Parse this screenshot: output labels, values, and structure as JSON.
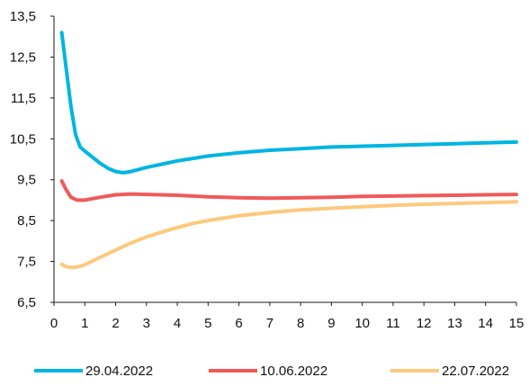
{
  "chart_data": {
    "type": "line",
    "title": "",
    "xlabel": "",
    "ylabel": "",
    "xlim": [
      0,
      15
    ],
    "ylim": [
      6.5,
      13.5
    ],
    "x_ticks": [
      "0",
      "1",
      "2",
      "3",
      "4",
      "5",
      "6",
      "7",
      "8",
      "9",
      "10",
      "11",
      "12",
      "13",
      "14",
      "15"
    ],
    "y_ticks": [
      "6,5",
      "7,5",
      "8,5",
      "9,5",
      "10,5",
      "11,5",
      "12,5",
      "13,5"
    ],
    "grid": false,
    "legend_position": "bottom",
    "series": [
      {
        "name": "29.04.2022",
        "color": "#00b5e2",
        "points": [
          [
            0.25,
            13.1
          ],
          [
            0.4,
            12.2
          ],
          [
            0.55,
            11.3
          ],
          [
            0.7,
            10.6
          ],
          [
            0.85,
            10.3
          ],
          [
            1.0,
            10.2
          ],
          [
            1.25,
            10.05
          ],
          [
            1.5,
            9.9
          ],
          [
            1.75,
            9.78
          ],
          [
            2.0,
            9.7
          ],
          [
            2.25,
            9.67
          ],
          [
            2.5,
            9.7
          ],
          [
            3.0,
            9.8
          ],
          [
            3.5,
            9.88
          ],
          [
            4.0,
            9.96
          ],
          [
            4.5,
            10.02
          ],
          [
            5.0,
            10.08
          ],
          [
            6.0,
            10.16
          ],
          [
            7.0,
            10.22
          ],
          [
            8.0,
            10.26
          ],
          [
            9.0,
            10.3
          ],
          [
            10.0,
            10.32
          ],
          [
            11.0,
            10.34
          ],
          [
            12.0,
            10.36
          ],
          [
            13.0,
            10.38
          ],
          [
            14.0,
            10.4
          ],
          [
            15.0,
            10.42
          ]
        ]
      },
      {
        "name": "10.06.2022",
        "color": "#ef5a5a",
        "points": [
          [
            0.25,
            9.47
          ],
          [
            0.4,
            9.25
          ],
          [
            0.55,
            9.07
          ],
          [
            0.75,
            9.0
          ],
          [
            1.0,
            9.0
          ],
          [
            1.5,
            9.07
          ],
          [
            2.0,
            9.13
          ],
          [
            2.5,
            9.15
          ],
          [
            3.0,
            9.14
          ],
          [
            4.0,
            9.12
          ],
          [
            5.0,
            9.08
          ],
          [
            6.0,
            9.06
          ],
          [
            7.0,
            9.05
          ],
          [
            8.0,
            9.06
          ],
          [
            9.0,
            9.07
          ],
          [
            10.0,
            9.09
          ],
          [
            11.0,
            9.1
          ],
          [
            12.0,
            9.11
          ],
          [
            13.0,
            9.12
          ],
          [
            14.0,
            9.13
          ],
          [
            15.0,
            9.14
          ]
        ]
      },
      {
        "name": "22.07.2022",
        "color": "#fcc97e",
        "points": [
          [
            0.25,
            7.43
          ],
          [
            0.4,
            7.37
          ],
          [
            0.6,
            7.35
          ],
          [
            0.8,
            7.37
          ],
          [
            1.0,
            7.42
          ],
          [
            1.5,
            7.6
          ],
          [
            2.0,
            7.78
          ],
          [
            2.5,
            7.95
          ],
          [
            3.0,
            8.1
          ],
          [
            3.5,
            8.22
          ],
          [
            4.0,
            8.33
          ],
          [
            4.5,
            8.43
          ],
          [
            5.0,
            8.5
          ],
          [
            6.0,
            8.62
          ],
          [
            7.0,
            8.7
          ],
          [
            8.0,
            8.76
          ],
          [
            9.0,
            8.8
          ],
          [
            10.0,
            8.84
          ],
          [
            11.0,
            8.87
          ],
          [
            12.0,
            8.9
          ],
          [
            13.0,
            8.92
          ],
          [
            14.0,
            8.94
          ],
          [
            15.0,
            8.96
          ]
        ]
      }
    ]
  }
}
